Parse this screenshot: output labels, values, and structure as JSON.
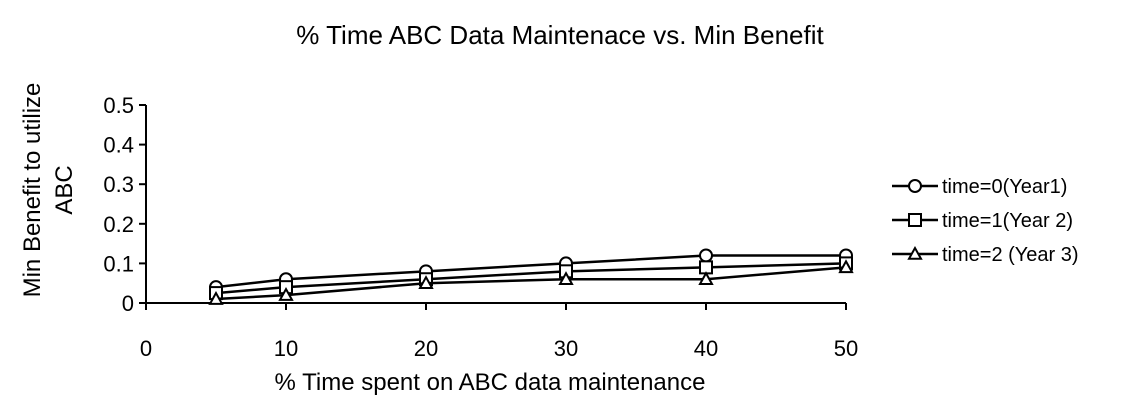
{
  "chart_data": {
    "type": "line",
    "title": "% Time ABC Data Maintenace vs. Min Benefit",
    "xlabel": "% Time spent on ABC data maintenance",
    "ylabel_lines": [
      "Min Benefit to utilize",
      "ABC"
    ],
    "x": [
      5,
      10,
      20,
      30,
      40,
      50
    ],
    "xlim": [
      0,
      50
    ],
    "ylim": [
      0,
      0.5
    ],
    "x_ticks": [
      0,
      10,
      20,
      30,
      40,
      50
    ],
    "y_ticks": [
      0,
      0.1,
      0.2,
      0.3,
      0.4,
      0.5
    ],
    "x_tick_labels": [
      "0",
      "10",
      "20",
      "30",
      "40",
      "50"
    ],
    "y_tick_labels": [
      "0",
      "0.1",
      "0.2",
      "0.3",
      "0.4",
      "0.5"
    ],
    "grid": false,
    "legend_position": "right",
    "series": [
      {
        "name": "time=0(Year1)",
        "marker": "circle",
        "values": [
          0.04,
          0.06,
          0.08,
          0.1,
          0.12,
          0.12
        ]
      },
      {
        "name": "time=1(Year 2)",
        "marker": "square",
        "values": [
          0.025,
          0.04,
          0.06,
          0.08,
          0.09,
          0.1
        ]
      },
      {
        "name": "time=2 (Year 3)",
        "marker": "triangle",
        "values": [
          0.01,
          0.02,
          0.05,
          0.06,
          0.06,
          0.09
        ]
      }
    ],
    "colors": {
      "line": "#000000",
      "marker_fill": "#ffffff"
    }
  }
}
